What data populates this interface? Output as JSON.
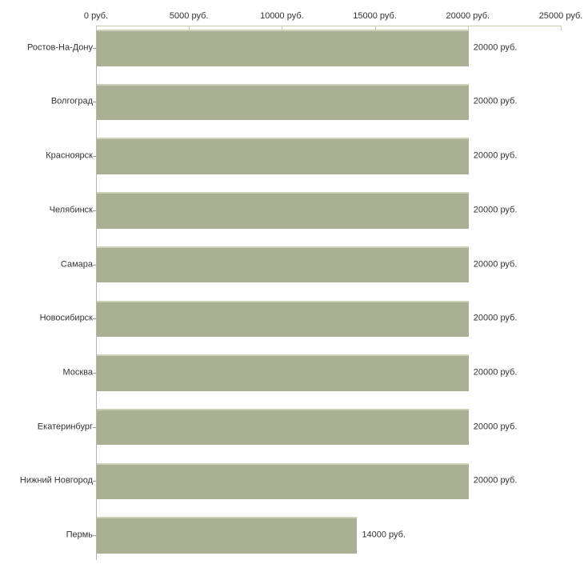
{
  "chart_data": {
    "type": "bar",
    "orientation": "horizontal",
    "title": "",
    "xlabel": "",
    "ylabel": "",
    "unit": "руб.",
    "xlim": [
      0,
      25000
    ],
    "grid": false,
    "legend": false,
    "categories": [
      "Ростов-На-Дону",
      "Волгоград",
      "Красноярск",
      "Челябинск",
      "Самара",
      "Новосибирск",
      "Москва",
      "Екатеринбург",
      "Нижний Новгород",
      "Пермь"
    ],
    "values": [
      20000,
      20000,
      20000,
      20000,
      20000,
      20000,
      20000,
      20000,
      20000,
      14000
    ],
    "value_labels": [
      "20000 руб.",
      "20000 руб.",
      "20000 руб.",
      "20000 руб.",
      "20000 руб.",
      "20000 руб.",
      "20000 руб.",
      "20000 руб.",
      "20000 руб.",
      "14000 руб."
    ],
    "x_ticks": [
      0,
      5000,
      10000,
      15000,
      20000,
      25000
    ],
    "x_tick_labels": [
      "0 руб.",
      "5000 руб.",
      "10000 руб.",
      "15000 руб.",
      "20000 руб.",
      "25000 руб."
    ],
    "colors": {
      "bar_fill": "#aab094",
      "bar_top_edge": "#ccd0b6",
      "x_axis_line": "#c9cbaf",
      "y_axis_line": "#b4b4b4",
      "category_tick": "#999999",
      "text": "#333333",
      "background": "#ffffff"
    }
  }
}
